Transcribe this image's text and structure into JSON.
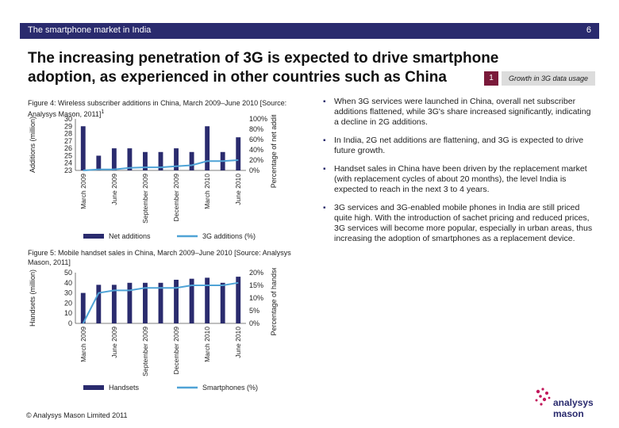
{
  "header": {
    "left_text": "The smartphone market in India",
    "page_number": "6"
  },
  "title": "The increasing penetration of 3G is expected to drive smartphone adoption, as experienced in other countries such as China",
  "tag": {
    "number": "1",
    "label": "Growth in 3G data usage"
  },
  "figure4": {
    "caption": "Figure 4: Wireless subscriber additions in China, March 2009–June 2010 [Source: Analysys Mason, 2011]",
    "caption_superscript": "1",
    "chart_data": {
      "type": "bar",
      "categories": [
        "March 2009",
        "",
        "June 2009",
        "",
        "September 2009",
        "",
        "December 2009",
        "",
        "March 2010",
        "",
        "June 2010"
      ],
      "series": [
        {
          "name": "Net additions",
          "kind": "bar",
          "axis": "left",
          "values": [
            29,
            25,
            26,
            26,
            25.5,
            25.5,
            26,
            25.5,
            29,
            25.5,
            27.5
          ],
          "color": "#2a2b6e"
        },
        {
          "name": "3G additions (%)",
          "kind": "line",
          "axis": "right",
          "values": [
            0,
            2,
            2,
            5,
            6,
            6,
            8,
            10,
            18,
            18,
            20
          ],
          "color": "#4fa3d6"
        }
      ],
      "ylabel": "Additions (million)",
      "y2label": "Percentage of net additions",
      "yticks": [
        "30",
        "29",
        "28",
        "27",
        "26",
        "25",
        "24",
        "23"
      ],
      "y2ticks": [
        "100%",
        "80%",
        "60%",
        "40%",
        "20%",
        "0%"
      ],
      "ylim": [
        23,
        30
      ],
      "y2lim": [
        0,
        100
      ],
      "legend_position": "bottom"
    }
  },
  "figure5": {
    "caption": "Figure 5: Mobile handset sales in China, March 2009–June 2010 [Source: Analysys Mason, 2011]",
    "chart_data": {
      "type": "bar",
      "categories": [
        "March 2009",
        "",
        "June 2009",
        "",
        "September 2009",
        "",
        "December 2009",
        "",
        "March 2010",
        "",
        "June 2010"
      ],
      "series": [
        {
          "name": "Handsets",
          "kind": "bar",
          "axis": "left",
          "values": [
            30,
            38,
            38,
            40,
            40,
            40,
            43,
            44,
            45,
            40,
            46
          ],
          "color": "#2a2b6e"
        },
        {
          "name": "Smartphones (%)",
          "kind": "line",
          "axis": "right",
          "values": [
            0,
            12,
            13,
            13,
            14,
            14,
            14,
            15,
            15,
            15,
            16
          ],
          "color": "#4fa3d6"
        }
      ],
      "ylabel": "Handsets (million)",
      "y2label": "Percentage of handsets",
      "yticks": [
        "50",
        "40",
        "30",
        "20",
        "10",
        "0"
      ],
      "y2ticks": [
        "20%",
        "15%",
        "10%",
        "5%",
        "0%"
      ],
      "ylim": [
        0,
        50
      ],
      "y2lim": [
        0,
        20
      ],
      "legend_position": "bottom"
    }
  },
  "bullets": [
    "When 3G services were launched in China, overall net subscriber additions flattened, while 3G's share increased significantly, indicating a decline in 2G additions.",
    "In India, 2G net additions are flattening, and 3G is expected to drive future growth.",
    "Handset sales in China have been driven by the replacement market (with replacement cycles of about 20 months), the level India is expected to reach in the next 3 to 4 years.",
    "3G services and 3G-enabled mobile phones in India are still priced quite high. With the introduction of sachet pricing and reduced prices, 3G services will become more popular, especially in urban areas, thus increasing the adoption of smartphones as a replacement device."
  ],
  "footer": "© Analysys Mason Limited 2011",
  "logo": {
    "line1": "analysys",
    "line2": "mason",
    "color": "#2a2b6e",
    "accent": "#c2185b"
  }
}
